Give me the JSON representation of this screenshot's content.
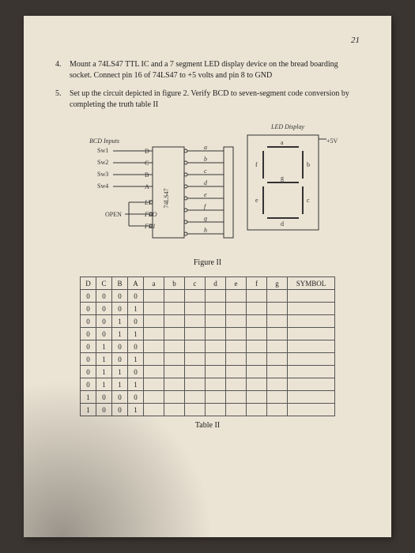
{
  "page_number": "21",
  "items": [
    {
      "num": "4.",
      "text": "Mount a 74LS47 TTL IC and a 7 segment LED display device on the bread boarding socket. Connect pin 16 of 74LS47 to +5 volts and pin 8 to GND"
    },
    {
      "num": "5.",
      "text": "Set up the circuit depicted in figure 2. Verify BCD to seven-segment code conversion by completing the truth table II"
    }
  ],
  "diagram": {
    "led_display_label": "LED Display",
    "bcd_inputs_label": "BCD Inputs",
    "plus5v_label": "+5V",
    "open_label": "OPEN",
    "chip_label": "74LS47",
    "switches": [
      "Sw1",
      "Sw2",
      "Sw3",
      "Sw4"
    ],
    "chip_left_pins": [
      "D",
      "C",
      "B",
      "A",
      "LT",
      "FBO",
      "FB1"
    ],
    "chip_right_pins": [
      "a",
      "b",
      "c",
      "d",
      "e",
      "f",
      "g",
      "h"
    ],
    "seven_seg_labels": [
      "a",
      "b",
      "c",
      "d",
      "e",
      "f",
      "g"
    ],
    "caption": "Figure II",
    "colors": {
      "line": "#333333",
      "bg": "#ebe3d4"
    }
  },
  "table": {
    "headers_dcba": [
      "D",
      "C",
      "B",
      "A"
    ],
    "headers_seg": [
      "a",
      "b",
      "c",
      "d",
      "e",
      "f",
      "g"
    ],
    "header_symbol": "SYMBOL",
    "rows": [
      [
        "0",
        "0",
        "0",
        "0"
      ],
      [
        "0",
        "0",
        "0",
        "1"
      ],
      [
        "0",
        "0",
        "1",
        "0"
      ],
      [
        "0",
        "0",
        "1",
        "1"
      ],
      [
        "0",
        "1",
        "0",
        "0"
      ],
      [
        "0",
        "1",
        "0",
        "1"
      ],
      [
        "0",
        "1",
        "1",
        "0"
      ],
      [
        "0",
        "1",
        "1",
        "1"
      ],
      [
        "1",
        "0",
        "0",
        "0"
      ],
      [
        "1",
        "0",
        "0",
        "1"
      ]
    ],
    "caption": "Table II"
  }
}
